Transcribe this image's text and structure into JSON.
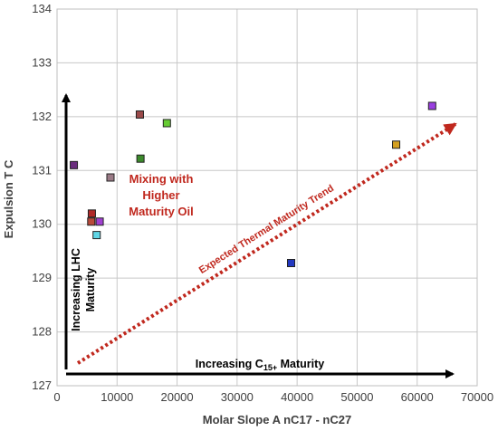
{
  "chart_data": {
    "type": "scatter",
    "title": "",
    "xlabel": "Molar Slope A nC17 - nC27",
    "ylabel": "Expulsion T C",
    "xlim": [
      0,
      70000
    ],
    "ylim": [
      127,
      134
    ],
    "x_ticks": [
      "0",
      "10000",
      "20000",
      "30000",
      "40000",
      "50000",
      "60000",
      "70000"
    ],
    "y_ticks": [
      "127",
      "128",
      "129",
      "130",
      "131",
      "132",
      "133",
      "134"
    ],
    "grid": true,
    "legend": "none",
    "points": [
      {
        "x": 2800,
        "y": 131.1,
        "color": "#6b2d7e"
      },
      {
        "x": 5800,
        "y": 130.2,
        "color": "#b02a2a"
      },
      {
        "x": 5700,
        "y": 130.05,
        "color": "#b84a3a"
      },
      {
        "x": 6600,
        "y": 129.8,
        "color": "#5fd6e6"
      },
      {
        "x": 7100,
        "y": 130.05,
        "color": "#a040d0"
      },
      {
        "x": 8900,
        "y": 130.87,
        "color": "#9a7a86"
      },
      {
        "x": 13800,
        "y": 132.04,
        "color": "#9b4a4a"
      },
      {
        "x": 13900,
        "y": 131.22,
        "color": "#3d8a2c"
      },
      {
        "x": 18300,
        "y": 131.88,
        "color": "#66cc33"
      },
      {
        "x": 39000,
        "y": 129.28,
        "color": "#2238c0"
      },
      {
        "x": 56500,
        "y": 131.48,
        "color": "#d4a020"
      },
      {
        "x": 62500,
        "y": 132.2,
        "color": "#9a3fe0"
      }
    ],
    "annotations": {
      "mixing": [
        "Mixing with",
        "Higher",
        "Maturity Oil"
      ],
      "trend": "Expected Thermal Maturity Trend",
      "x_arrow_prefix": "Increasing C",
      "x_arrow_sub": "15+",
      "x_arrow_suffix": " Maturity",
      "y_arrow_line1": "Increasing LHC",
      "y_arrow_line2": "Maturity"
    }
  }
}
